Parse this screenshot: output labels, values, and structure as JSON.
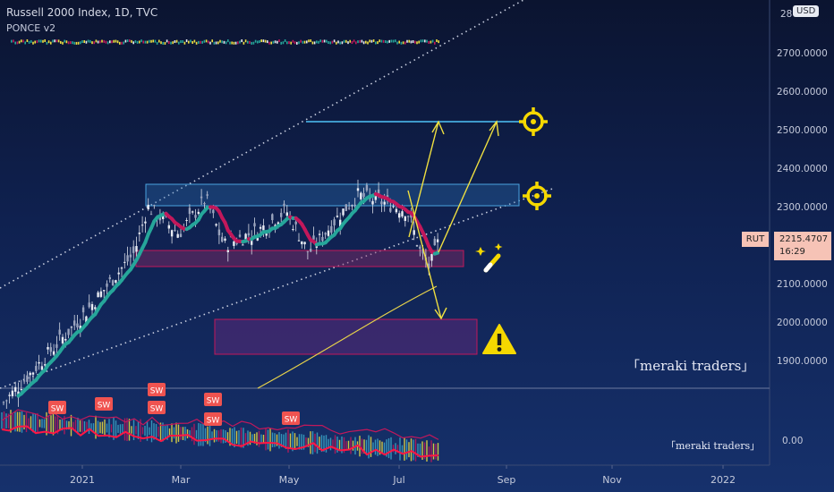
{
  "header": {
    "title": "Russell 2000 Index, 1D, TVC",
    "indicator": "PONCE v2",
    "currency": "USD"
  },
  "price_axis": {
    "top_partial": "28",
    "labels": [
      "2700.0000",
      "2600.0000",
      "2500.0000",
      "2400.0000",
      "2300.0000",
      "2100.0000",
      "2000.0000",
      "1900.0000"
    ],
    "values": [
      2700,
      2600,
      2500,
      2400,
      2300,
      2100,
      2000,
      1900
    ],
    "last_symbol": "RUT",
    "last_price": "2215.4707",
    "last_price_value": 2215.47,
    "countdown": "16:29",
    "indicator_zero": "0.00"
  },
  "time_axis": {
    "labels": [
      "2021",
      "Mar",
      "May",
      "Jul",
      "Sep",
      "Nov",
      "2022"
    ]
  },
  "markers": {
    "sw_label": "SW"
  },
  "watermark": {
    "main": "「meraki traders」",
    "sub": "「meraki traders」"
  },
  "colors": {
    "background_top": "#0b1430",
    "background_bottom": "#16316c",
    "bull_wick": "#d8dce6",
    "bear_ma": "#c2185b",
    "bull_ma": "#26a69a",
    "zone_blue": "#2a6fb3",
    "zone_red": "#b0285a",
    "arrow": "#f0e040",
    "target_icon": "#f5d800",
    "price_tag": "#f6c3b6"
  },
  "icons": {
    "target": "crosshair-target-icon",
    "warning": "warning-icon",
    "magic": "magic-wand-icon"
  }
}
